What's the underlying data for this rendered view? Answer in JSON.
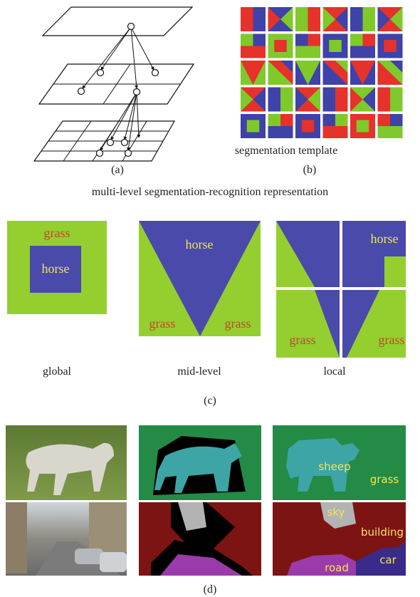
{
  "panel_a": {
    "caption": "(a)"
  },
  "panel_b": {
    "label": "segmentation template",
    "caption": "(b)"
  },
  "section_title": "multi-level segmentation-recognition representation",
  "panel_c": {
    "global": {
      "outer": "grass",
      "inner": "horse",
      "caption": "global"
    },
    "mid_level": {
      "top": "horse",
      "left": "grass",
      "right": "grass",
      "caption": "mid-level"
    },
    "local": {
      "top_right": "horse",
      "bottom_left": "grass",
      "bottom_right": "grass",
      "caption": "local"
    },
    "caption": "(c)"
  },
  "panel_d": {
    "labels": {
      "sheep": "sheep",
      "grass": "grass",
      "sky": "sky",
      "building": "building",
      "car": "car",
      "road": "road"
    },
    "caption": "(d)"
  }
}
